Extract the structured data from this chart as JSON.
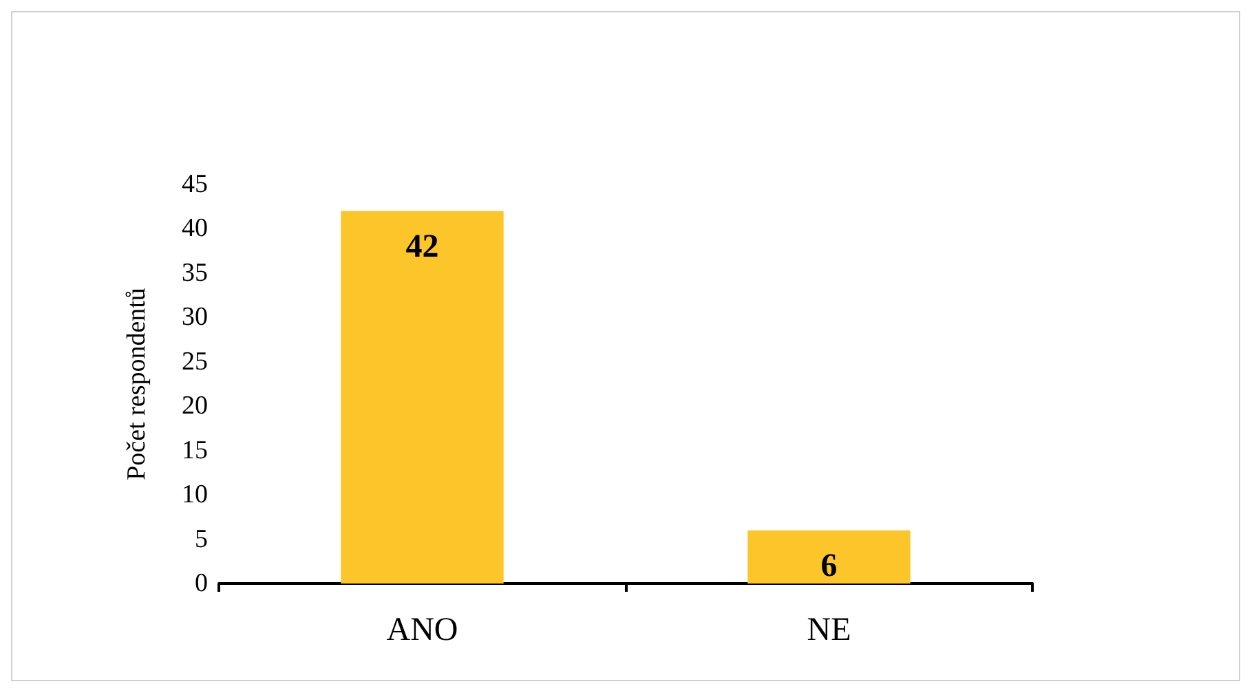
{
  "chart_data": {
    "type": "bar",
    "ylabel": "Počet respondentů",
    "categories": [
      "ANO",
      "NE"
    ],
    "values": [
      42,
      6
    ],
    "color": "#fcc62a",
    "ylim": [
      0,
      45
    ],
    "yticks": [
      0,
      5,
      10,
      15,
      20,
      25,
      30,
      35,
      40,
      45
    ],
    "grid": false,
    "data_labels": true
  }
}
